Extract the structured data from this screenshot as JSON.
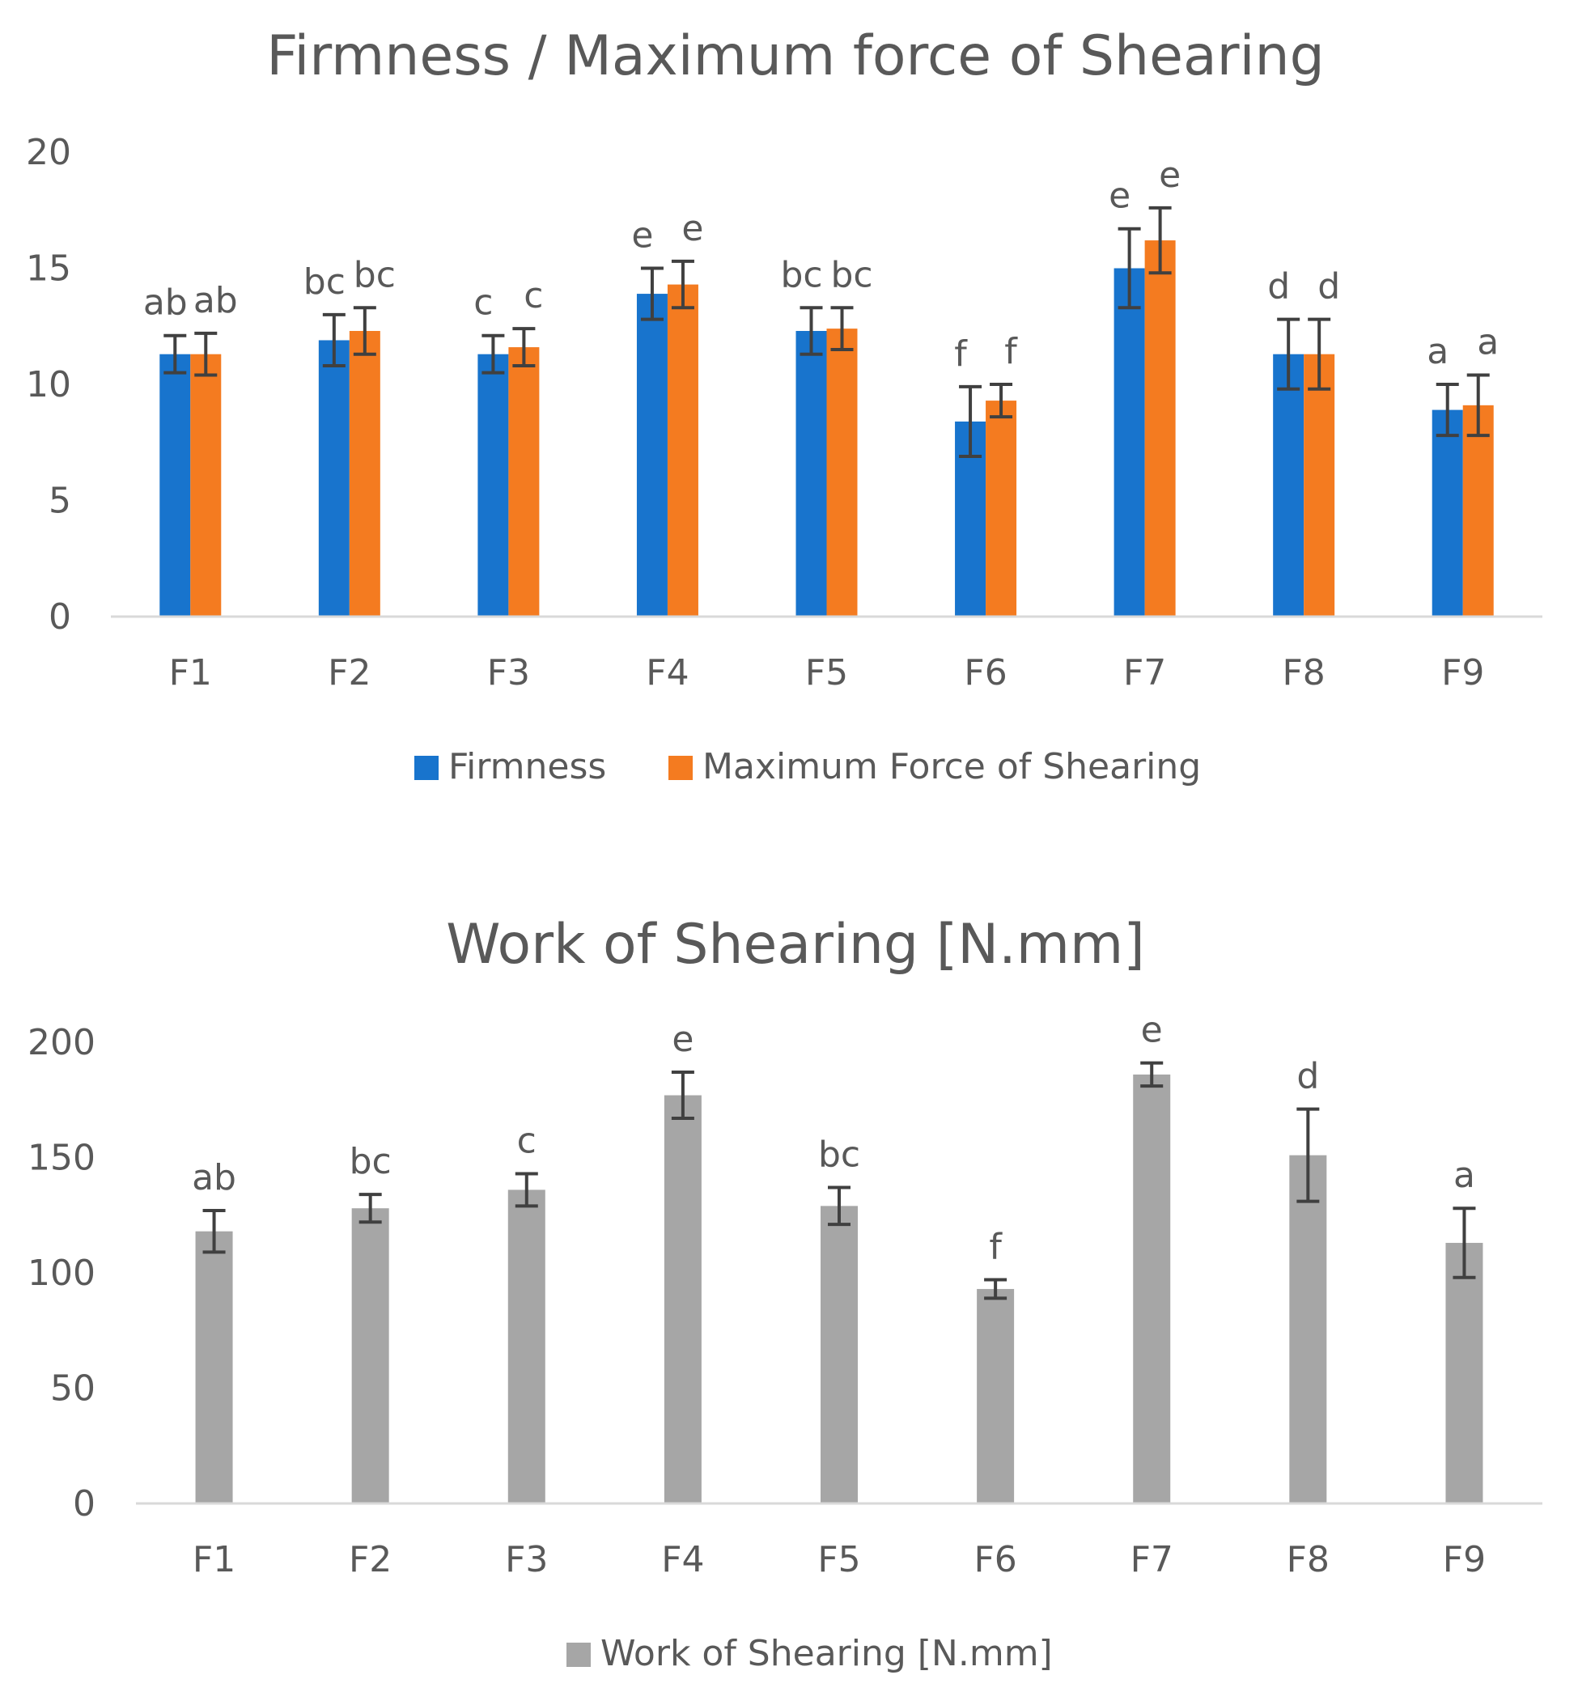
{
  "chart_data": [
    {
      "type": "bar",
      "title": "Firmness / Maximum force of Shearing",
      "xlabel": "",
      "ylabel": "",
      "ylim": [
        0,
        20
      ],
      "yticks": [
        0,
        5,
        10,
        15,
        20
      ],
      "grid": false,
      "legend": "bottom",
      "categories": [
        "F1",
        "F2",
        "F3",
        "F4",
        "F5",
        "F6",
        "F7",
        "F8",
        "F9"
      ],
      "series": [
        {
          "name": "Firmness",
          "color": "#1874cd",
          "values": [
            11.3,
            11.9,
            11.3,
            13.9,
            12.3,
            8.4,
            15.0,
            11.3,
            8.9
          ],
          "errors": [
            0.8,
            1.1,
            0.8,
            1.1,
            1.0,
            1.5,
            1.7,
            1.5,
            1.1
          ],
          "letters": [
            "ab",
            "bc",
            "c",
            "e",
            "bc",
            "f",
            "e",
            "d",
            "a"
          ]
        },
        {
          "name": "Maximum Force of Shearing",
          "color": "#f47b20",
          "values": [
            11.3,
            12.3,
            11.6,
            14.3,
            12.4,
            9.3,
            16.2,
            11.3,
            9.1
          ],
          "errors": [
            0.9,
            1.0,
            0.8,
            1.0,
            0.9,
            0.7,
            1.4,
            1.5,
            1.3
          ],
          "letters": [
            "ab",
            "bc",
            "c",
            "e",
            "bc",
            "f",
            "e",
            "d",
            "a"
          ]
        }
      ]
    },
    {
      "type": "bar",
      "title": "Work of Shearing [N.mm]",
      "xlabel": "",
      "ylabel": "",
      "ylim": [
        0,
        200
      ],
      "yticks": [
        0,
        50,
        100,
        150,
        200
      ],
      "grid": false,
      "legend": "bottom",
      "categories": [
        "F1",
        "F2",
        "F3",
        "F4",
        "F5",
        "F6",
        "F7",
        "F8",
        "F9"
      ],
      "series": [
        {
          "name": "Work of Shearing [N.mm]",
          "color": "#a6a6a6",
          "values": [
            118,
            128,
            136,
            177,
            129,
            93,
            186,
            151,
            113
          ],
          "errors": [
            9,
            6,
            7,
            10,
            8,
            4,
            5,
            20,
            15
          ],
          "letters": [
            "ab",
            "bc",
            "c",
            "e",
            "bc",
            "f",
            "e",
            "d",
            "a"
          ]
        }
      ]
    }
  ]
}
